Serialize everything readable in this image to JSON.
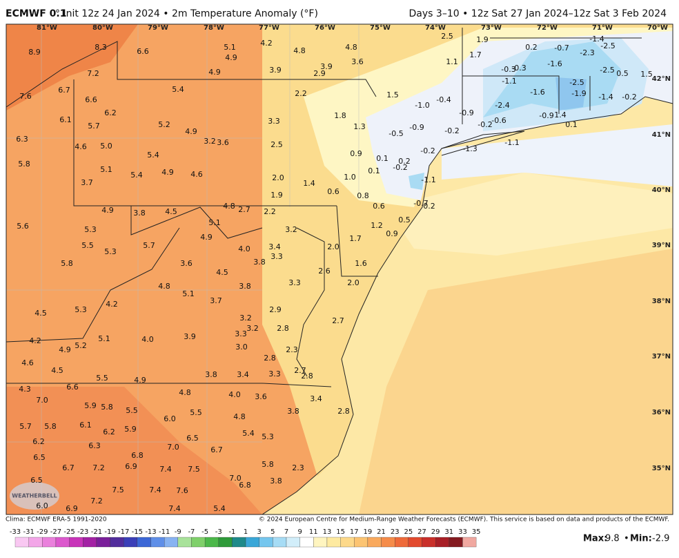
{
  "header": {
    "title": "ECMWF 0.1",
    "subtitle": "° Init 12z 24 Jan 2024 • 2m Temperature Anomaly (°F)",
    "period": "Days 3–10 • 12z Sat 27 Jan 2024–12z Sat 3 Feb 2024"
  },
  "map": {
    "lon_labels": [
      "81°W",
      "80°W",
      "79°W",
      "78°W",
      "77°W",
      "76°W",
      "75°W",
      "74°W",
      "73°W",
      "72°W",
      "71°W",
      "70°W"
    ],
    "lat_labels": [
      "42°N",
      "41°N",
      "40°N",
      "39°N",
      "38°N",
      "37°N",
      "36°N",
      "35°N"
    ],
    "logo": "WEATHERBELL",
    "values": [
      8.9,
      8.3,
      6.6,
      5.1,
      4.9,
      4.2,
      4.8,
      4.8,
      2.5,
      1.9,
      0.2,
      -0.7,
      -1.4,
      -2.5,
      -2.3,
      3.6,
      1.7,
      1.1,
      -1.6,
      7.2,
      4.9,
      3.9,
      2.9,
      3.9,
      -0.3,
      -0.3,
      -2.5,
      0.5,
      1.5,
      6.7,
      5.4,
      2.2,
      1.5,
      -1.1,
      -1.6,
      -2.5,
      -1.9,
      -1.4,
      -0.2,
      7.6,
      6.6,
      -0.4,
      {
        "value": -1,
        "label": "-1.0"
      },
      -2.4,
      6.2,
      1.8,
      -0.9,
      -0.9,
      1.4,
      6.1,
      5.7,
      5.2,
      3.3,
      1.3,
      -0.9,
      -0.2,
      0.1,
      4.9,
      -0.5,
      -0.2,
      -0.6,
      6.3,
      3.2,
      3.6,
      2.5,
      -1.1,
      4.6,
      {
        "value": 5,
        "label": "5.0"
      },
      -1.3,
      0.9,
      5.4,
      -0.2,
      0.1,
      0.2,
      5.8,
      5.1,
      4.9,
      4.6,
      5.4,
      -0.2,
      0.1,
      {
        "value": 2,
        "label": "2.0"
      },
      {
        "value": 1,
        "label": "1.0"
      },
      1.4,
      -1.1,
      3.7,
      0.6,
      1.9,
      0.8,
      -0.7,
      0.2,
      0.6,
      4.9,
      3.8,
      4.5,
      4.8,
      2.7,
      2.2,
      0.5,
      5.1,
      1.2,
      5.6,
      5.3,
      3.2,
      0.9,
      4.9,
      1.7,
      5.5,
      5.7,
      {
        "value": 4,
        "label": "4.0"
      },
      3.4,
      {
        "value": 2,
        "label": "2.0"
      },
      5.3,
      3.3,
      5.8,
      3.6,
      1.6,
      3.8,
      4.5,
      2.6,
      4.8,
      3.8,
      3.3,
      {
        "value": 2,
        "label": "2.0"
      },
      5.1,
      3.7,
      4.2,
      5.3,
      2.9,
      4.5,
      3.2,
      3.2,
      2.7,
      3.3,
      2.8,
      5.1,
      {
        "value": 4,
        "label": "4.0"
      },
      3.9,
      4.2,
      4.9,
      5.2,
      {
        "value": 3,
        "label": "3.0"
      },
      2.3,
      2.8,
      4.6,
      4.5,
      2.7,
      3.8,
      3.4,
      3.3,
      2.8,
      5.5,
      4.9,
      6.6,
      4.3,
      4.8,
      {
        "value": 4,
        "label": "4.0"
      },
      3.6,
      3.4,
      {
        "value": 7,
        "label": "7.0"
      },
      5.9,
      5.8,
      5.5,
      5.5,
      4.8,
      3.8,
      2.8,
      {
        "value": 6,
        "label": "6.0"
      },
      5.7,
      5.8,
      6.1,
      5.9,
      6.2,
      5.4,
      5.3,
      6.5,
      6.2,
      6.3,
      {
        "value": 7,
        "label": "7.0"
      },
      6.7,
      6.5,
      6.8,
      5.8,
      6.7,
      7.2,
      6.9,
      7.4,
      7.5,
      2.3,
      6.5,
      {
        "value": 7,
        "label": "7.0"
      },
      6.8,
      3.8,
      7.5,
      7.4,
      7.6,
      7.2,
      {
        "value": 6,
        "label": "6.0"
      },
      6.9,
      7.4,
      5.4
    ]
  },
  "footer": {
    "climo": "Clima: ECMWF ERA-5 1991-2020",
    "copyright": "© 2024 European Centre for Medium-Range Weather Forecasts (ECMWF). This service is based on data and products of the ECMWF."
  },
  "colorbar": {
    "ticks": [
      -33,
      -31,
      -29,
      -27,
      -25,
      -23,
      -21,
      -19,
      -17,
      -15,
      -13,
      -11,
      -9,
      -7,
      -5,
      -3,
      -1,
      1,
      3,
      5,
      7,
      9,
      11,
      13,
      15,
      17,
      19,
      21,
      23,
      25,
      27,
      29,
      31,
      33,
      35
    ],
    "colors": [
      "#f9c8f2",
      "#f3a6e8",
      "#ea80dc",
      "#dc58cd",
      "#c834b9",
      "#a321a4",
      "#7a1f9a",
      "#522d9c",
      "#3b3fb8",
      "#3c67d6",
      "#5f8fe8",
      "#88b3f2",
      "#a8e29a",
      "#7fd06a",
      "#4cb84a",
      "#2f9a3a",
      "#1f8a8a",
      "#3aa7d8",
      "#75c6ee",
      "#a6dcf5",
      "#d2eefa",
      "#ffffff",
      "#fff5c0",
      "#feeaa0",
      "#fdd98a",
      "#fcc472",
      "#f9a95d",
      "#f58c4a",
      "#ee6a3a",
      "#e24a2e",
      "#c9302a",
      "#a81f26",
      "#841a20",
      "#f0a8a0"
    ],
    "max_label": "Max:",
    "max": 9.8,
    "separator": "•",
    "min_label": "Min:",
    "min": -2.9
  }
}
